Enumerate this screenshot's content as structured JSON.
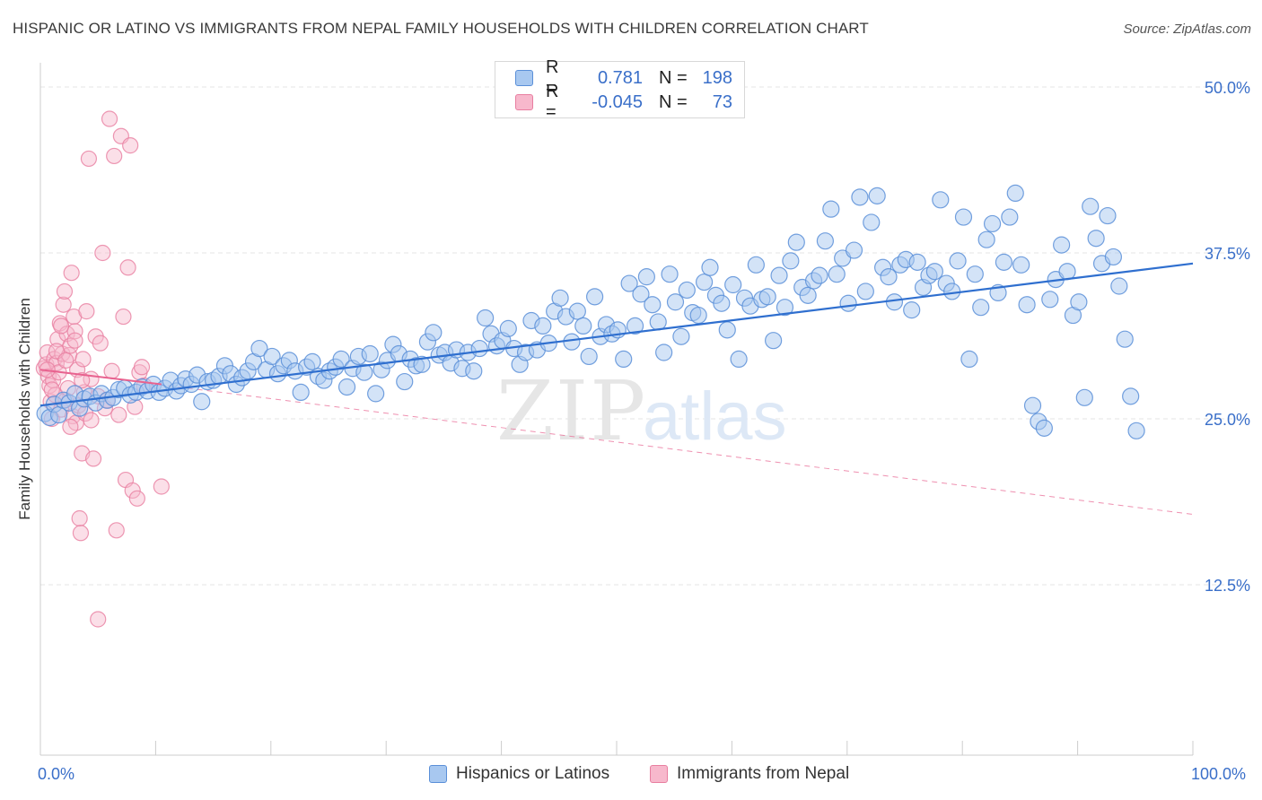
{
  "title": "HISPANIC OR LATINO VS IMMIGRANTS FROM NEPAL FAMILY HOUSEHOLDS WITH CHILDREN CORRELATION CHART",
  "source": "Source: ZipAtlas.com",
  "legend": {
    "rows": [
      {
        "r_label": "R =",
        "r_value": "0.781",
        "n_label": "N =",
        "n_value": "198"
      },
      {
        "r_label": "R =",
        "r_value": "-0.045",
        "n_label": "N =",
        "n_value": "73"
      }
    ]
  },
  "bottom_legend": [
    "Hispanics or Latinos",
    "Immigrants from Nepal"
  ],
  "watermark": {
    "zip": "ZIP",
    "atlas": "atlas"
  },
  "colors": {
    "blue_fill": "#a8c8f0",
    "blue_stroke": "#5a8fd8",
    "blue_line": "#2f6fcf",
    "pink_fill": "#f7b8cc",
    "pink_stroke": "#e87ea0",
    "pink_line": "#e8628f",
    "tick_text": "#3a6fc9",
    "grid": "#e4e4e4"
  },
  "chart_data": {
    "type": "scatter",
    "xlabel": "",
    "ylabel": "Family Households with Children",
    "xlim": [
      0,
      100
    ],
    "ylim": [
      0,
      52
    ],
    "x_tick_labels": [
      "0.0%",
      "100.0%"
    ],
    "y_ticks": [
      12.5,
      25.0,
      37.5,
      50.0
    ],
    "y_tick_labels": [
      "12.5%",
      "25.0%",
      "37.5%",
      "50.0%"
    ],
    "grid": "horizontal dashed",
    "series": [
      {
        "name": "Hispanics or Latinos",
        "r": 0.781,
        "n": 198,
        "trend": {
          "x": [
            0,
            100
          ],
          "y": [
            26.0,
            36.7
          ]
        },
        "points": [
          [
            0.4,
            25.4
          ],
          [
            0.8,
            25.1
          ],
          [
            1.2,
            26.1
          ],
          [
            1.6,
            25.3
          ],
          [
            2,
            26.4
          ],
          [
            2.5,
            26.2
          ],
          [
            3,
            26.9
          ],
          [
            3.4,
            25.8
          ],
          [
            3.8,
            26.5
          ],
          [
            4.3,
            26.7
          ],
          [
            4.8,
            26.2
          ],
          [
            5.3,
            26.9
          ],
          [
            5.8,
            26.4
          ],
          [
            6.3,
            26.6
          ],
          [
            6.8,
            27.2
          ],
          [
            7.3,
            27.3
          ],
          [
            7.8,
            26.8
          ],
          [
            8.3,
            27.0
          ],
          [
            8.8,
            27.4
          ],
          [
            9.3,
            27.1
          ],
          [
            9.8,
            27.6
          ],
          [
            10.3,
            27.0
          ],
          [
            10.8,
            27.3
          ],
          [
            11.3,
            27.9
          ],
          [
            11.8,
            27.1
          ],
          [
            12.2,
            27.5
          ],
          [
            12.6,
            28.0
          ],
          [
            13.1,
            27.6
          ],
          [
            13.6,
            28.3
          ],
          [
            14,
            26.3
          ],
          [
            14.5,
            27.8
          ],
          [
            15,
            27.9
          ],
          [
            15.5,
            28.2
          ],
          [
            16,
            29.0
          ],
          [
            16.5,
            28.4
          ],
          [
            17,
            27.6
          ],
          [
            17.5,
            28.1
          ],
          [
            18,
            28.6
          ],
          [
            18.5,
            29.3
          ],
          [
            19,
            30.3
          ],
          [
            19.6,
            28.7
          ],
          [
            20.1,
            29.7
          ],
          [
            20.6,
            28.4
          ],
          [
            21.1,
            29.0
          ],
          [
            21.6,
            29.4
          ],
          [
            22.1,
            28.6
          ],
          [
            22.6,
            27.0
          ],
          [
            23.1,
            28.9
          ],
          [
            23.6,
            29.3
          ],
          [
            24.1,
            28.2
          ],
          [
            24.6,
            27.9
          ],
          [
            25.1,
            28.6
          ],
          [
            25.6,
            28.9
          ],
          [
            26.1,
            29.5
          ],
          [
            26.6,
            27.4
          ],
          [
            27.1,
            28.8
          ],
          [
            27.6,
            29.7
          ],
          [
            28.1,
            28.5
          ],
          [
            28.6,
            29.9
          ],
          [
            29.1,
            26.9
          ],
          [
            29.6,
            28.7
          ],
          [
            30.1,
            29.4
          ],
          [
            30.6,
            30.6
          ],
          [
            31.1,
            29.9
          ],
          [
            31.6,
            27.8
          ],
          [
            32.1,
            29.5
          ],
          [
            32.6,
            29.0
          ],
          [
            33.1,
            29.1
          ],
          [
            33.6,
            30.8
          ],
          [
            34.1,
            31.5
          ],
          [
            34.6,
            29.8
          ],
          [
            35.1,
            30.0
          ],
          [
            35.6,
            29.2
          ],
          [
            36.1,
            30.2
          ],
          [
            36.6,
            28.8
          ],
          [
            37.1,
            30.0
          ],
          [
            37.6,
            28.6
          ],
          [
            38.1,
            30.3
          ],
          [
            38.6,
            32.6
          ],
          [
            39.1,
            31.4
          ],
          [
            39.6,
            30.5
          ],
          [
            40.1,
            30.9
          ],
          [
            40.6,
            31.8
          ],
          [
            41.1,
            30.3
          ],
          [
            41.6,
            29.1
          ],
          [
            42.1,
            30.0
          ],
          [
            42.6,
            32.4
          ],
          [
            43.1,
            30.2
          ],
          [
            43.6,
            32.0
          ],
          [
            44.1,
            30.7
          ],
          [
            44.6,
            33.1
          ],
          [
            45.1,
            34.1
          ],
          [
            45.6,
            32.7
          ],
          [
            46.1,
            30.8
          ],
          [
            46.6,
            33.1
          ],
          [
            47.1,
            32.0
          ],
          [
            47.6,
            29.7
          ],
          [
            48.1,
            34.2
          ],
          [
            48.6,
            31.2
          ],
          [
            49.1,
            32.1
          ],
          [
            49.6,
            31.4
          ],
          [
            50.1,
            31.7
          ],
          [
            50.6,
            29.5
          ],
          [
            51.1,
            35.2
          ],
          [
            51.6,
            32.0
          ],
          [
            52.1,
            34.4
          ],
          [
            52.6,
            35.7
          ],
          [
            53.1,
            33.6
          ],
          [
            53.6,
            32.3
          ],
          [
            54.1,
            30.0
          ],
          [
            54.6,
            35.9
          ],
          [
            55.1,
            33.8
          ],
          [
            55.6,
            31.2
          ],
          [
            56.1,
            34.7
          ],
          [
            56.6,
            33.0
          ],
          [
            57.1,
            32.8
          ],
          [
            57.6,
            35.3
          ],
          [
            58.1,
            36.4
          ],
          [
            58.6,
            34.3
          ],
          [
            59.1,
            33.7
          ],
          [
            59.6,
            31.7
          ],
          [
            60.1,
            35.1
          ],
          [
            60.6,
            29.5
          ],
          [
            61.1,
            34.1
          ],
          [
            61.6,
            33.5
          ],
          [
            62.1,
            36.6
          ],
          [
            62.6,
            34.0
          ],
          [
            63.1,
            34.2
          ],
          [
            63.6,
            30.9
          ],
          [
            64.1,
            35.8
          ],
          [
            64.6,
            33.4
          ],
          [
            65.1,
            36.9
          ],
          [
            65.6,
            38.3
          ],
          [
            66.1,
            34.9
          ],
          [
            66.6,
            34.3
          ],
          [
            67.1,
            35.4
          ],
          [
            67.6,
            35.8
          ],
          [
            68.1,
            38.4
          ],
          [
            68.6,
            40.8
          ],
          [
            69.1,
            35.9
          ],
          [
            69.6,
            37.1
          ],
          [
            70.1,
            33.7
          ],
          [
            70.6,
            37.7
          ],
          [
            71.1,
            41.7
          ],
          [
            71.6,
            34.6
          ],
          [
            72.1,
            39.8
          ],
          [
            72.6,
            41.8
          ],
          [
            73.1,
            36.4
          ],
          [
            73.6,
            35.7
          ],
          [
            74.1,
            33.8
          ],
          [
            74.6,
            36.6
          ],
          [
            75.1,
            37.0
          ],
          [
            75.6,
            33.2
          ],
          [
            76.1,
            36.8
          ],
          [
            76.6,
            34.9
          ],
          [
            77.1,
            35.8
          ],
          [
            77.6,
            36.1
          ],
          [
            78.1,
            41.5
          ],
          [
            78.6,
            35.2
          ],
          [
            79.1,
            34.6
          ],
          [
            79.6,
            36.9
          ],
          [
            80.1,
            40.2
          ],
          [
            80.6,
            29.5
          ],
          [
            81.1,
            35.9
          ],
          [
            81.6,
            33.4
          ],
          [
            82.1,
            38.5
          ],
          [
            82.6,
            39.7
          ],
          [
            83.1,
            34.5
          ],
          [
            83.6,
            36.8
          ],
          [
            84.1,
            40.2
          ],
          [
            84.6,
            42.0
          ],
          [
            85.1,
            36.6
          ],
          [
            85.6,
            33.6
          ],
          [
            86.1,
            26.0
          ],
          [
            86.6,
            24.8
          ],
          [
            87.1,
            24.3
          ],
          [
            87.6,
            34.0
          ],
          [
            88.1,
            35.5
          ],
          [
            88.6,
            38.1
          ],
          [
            89.1,
            36.1
          ],
          [
            89.6,
            32.8
          ],
          [
            90.1,
            33.8
          ],
          [
            90.6,
            26.6
          ],
          [
            91.1,
            41.0
          ],
          [
            91.6,
            38.6
          ],
          [
            92.1,
            36.7
          ],
          [
            92.6,
            40.3
          ],
          [
            93.1,
            37.2
          ],
          [
            93.6,
            35.0
          ],
          [
            94.1,
            31.0
          ],
          [
            94.6,
            26.7
          ],
          [
            95.1,
            24.1
          ]
        ]
      },
      {
        "name": "Immigrants from Nepal",
        "r": -0.045,
        "n": 73,
        "trend": {
          "x": [
            0,
            10.5
          ],
          "y": [
            28.7,
            27.6
          ]
        },
        "trend_dashed": {
          "x": [
            0,
            100
          ],
          "y": [
            28.7,
            17.8
          ]
        },
        "points": [
          [
            0.3,
            28.8
          ],
          [
            0.5,
            29.1
          ],
          [
            0.6,
            30.0
          ],
          [
            0.7,
            28.2
          ],
          [
            0.8,
            27.5
          ],
          [
            0.9,
            26.3
          ],
          [
            1.0,
            25.0
          ],
          [
            1.1,
            27.9
          ],
          [
            1.2,
            29.5
          ],
          [
            1.3,
            26.8
          ],
          [
            1.4,
            29.2
          ],
          [
            1.5,
            31.0
          ],
          [
            1.6,
            28.5
          ],
          [
            1.7,
            32.2
          ],
          [
            1.8,
            25.7
          ],
          [
            1.9,
            29.9
          ],
          [
            2.0,
            33.6
          ],
          [
            2.1,
            34.6
          ],
          [
            2.2,
            26.4
          ],
          [
            2.3,
            31.4
          ],
          [
            2.4,
            27.3
          ],
          [
            2.5,
            29.8
          ],
          [
            2.6,
            30.5
          ],
          [
            2.7,
            36.0
          ],
          [
            2.8,
            25.2
          ],
          [
            2.9,
            32.7
          ],
          [
            3.0,
            31.6
          ],
          [
            3.1,
            24.7
          ],
          [
            3.2,
            28.7
          ],
          [
            3.3,
            26.0
          ],
          [
            3.4,
            17.5
          ],
          [
            3.5,
            16.4
          ],
          [
            3.6,
            22.4
          ],
          [
            3.7,
            29.5
          ],
          [
            3.8,
            27.0
          ],
          [
            3.9,
            25.4
          ],
          [
            4.0,
            33.1
          ],
          [
            4.2,
            44.6
          ],
          [
            4.4,
            28.0
          ],
          [
            4.6,
            22.0
          ],
          [
            4.8,
            31.2
          ],
          [
            5.0,
            26.7
          ],
          [
            5.2,
            30.7
          ],
          [
            5.4,
            37.5
          ],
          [
            5.6,
            25.8
          ],
          [
            5.8,
            26.4
          ],
          [
            6.0,
            47.6
          ],
          [
            6.2,
            28.6
          ],
          [
            6.4,
            44.8
          ],
          [
            6.6,
            16.6
          ],
          [
            6.8,
            25.3
          ],
          [
            7.0,
            46.3
          ],
          [
            7.2,
            32.7
          ],
          [
            7.4,
            20.4
          ],
          [
            7.6,
            36.4
          ],
          [
            7.8,
            45.6
          ],
          [
            8.0,
            19.6
          ],
          [
            8.2,
            25.9
          ],
          [
            8.4,
            19.0
          ],
          [
            8.6,
            28.5
          ],
          [
            8.8,
            28.9
          ],
          [
            9.0,
            27.5
          ],
          [
            10.5,
            19.9
          ],
          [
            5.0,
            9.9
          ],
          [
            1.0,
            27.2
          ],
          [
            1.4,
            30.1
          ],
          [
            2.2,
            29.4
          ],
          [
            3.6,
            27.9
          ],
          [
            1.8,
            32.0
          ],
          [
            0.6,
            28.7
          ],
          [
            2.6,
            24.4
          ],
          [
            4.4,
            24.9
          ],
          [
            3.0,
            30.9
          ]
        ]
      }
    ]
  }
}
